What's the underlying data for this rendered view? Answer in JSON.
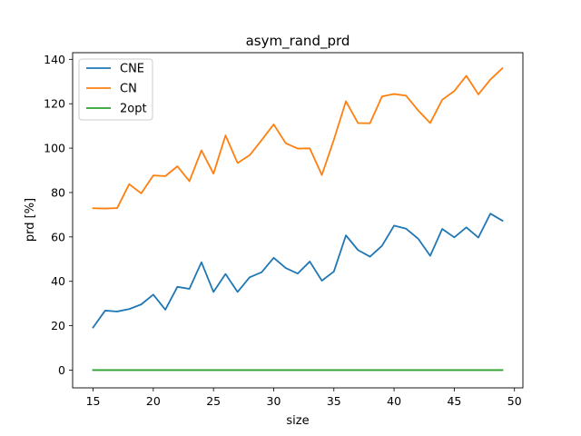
{
  "chart_data": {
    "type": "line",
    "title": "asym_rand_prd",
    "xlabel": "size",
    "ylabel": "prd [%]",
    "xlim": [
      13.3,
      50.7
    ],
    "ylim": [
      -8,
      143
    ],
    "xticks": [
      15,
      20,
      25,
      30,
      35,
      40,
      45,
      50
    ],
    "yticks": [
      0,
      20,
      40,
      60,
      80,
      100,
      120,
      140
    ],
    "grid": false,
    "legend_position": "top-left",
    "x": [
      15,
      16,
      17,
      18,
      19,
      20,
      21,
      22,
      23,
      24,
      25,
      26,
      27,
      28,
      29,
      30,
      31,
      32,
      33,
      34,
      35,
      36,
      37,
      38,
      39,
      40,
      41,
      42,
      43,
      44,
      45,
      46,
      47,
      48,
      49
    ],
    "series": [
      {
        "name": "CNE",
        "color": "#1f77b4",
        "values": [
          19.2,
          26.8,
          26.4,
          27.5,
          29.6,
          34.0,
          27.2,
          37.5,
          36.6,
          48.6,
          35.2,
          43.3,
          35.2,
          41.8,
          44.1,
          50.6,
          46.0,
          43.5,
          48.9,
          40.3,
          44.4,
          60.7,
          54.1,
          51.1,
          56.0,
          65.1,
          63.7,
          59.2,
          51.5,
          63.6,
          59.8,
          64.3,
          59.7,
          70.5,
          67.3
        ]
      },
      {
        "name": "CN",
        "color": "#ff7f0e",
        "values": [
          72.9,
          72.8,
          73.0,
          83.8,
          79.6,
          87.7,
          87.4,
          91.8,
          85.1,
          99.0,
          88.5,
          105.7,
          93.3,
          96.8,
          103.6,
          110.7,
          102.2,
          99.8,
          99.9,
          87.9,
          103.8,
          121.1,
          111.3,
          111.2,
          123.3,
          124.4,
          123.6,
          117.0,
          111.3,
          121.8,
          125.7,
          132.6,
          124.2,
          130.9,
          136.0
        ]
      },
      {
        "name": "2opt",
        "color": "#2ca02c",
        "values": [
          0,
          0,
          0,
          0,
          0,
          0,
          0,
          0,
          0,
          0,
          0,
          0,
          0,
          0,
          0,
          0,
          0,
          0,
          0,
          0,
          0,
          0,
          0,
          0,
          0,
          0,
          0,
          0,
          0,
          0,
          0,
          0,
          0,
          0,
          0
        ]
      }
    ]
  }
}
